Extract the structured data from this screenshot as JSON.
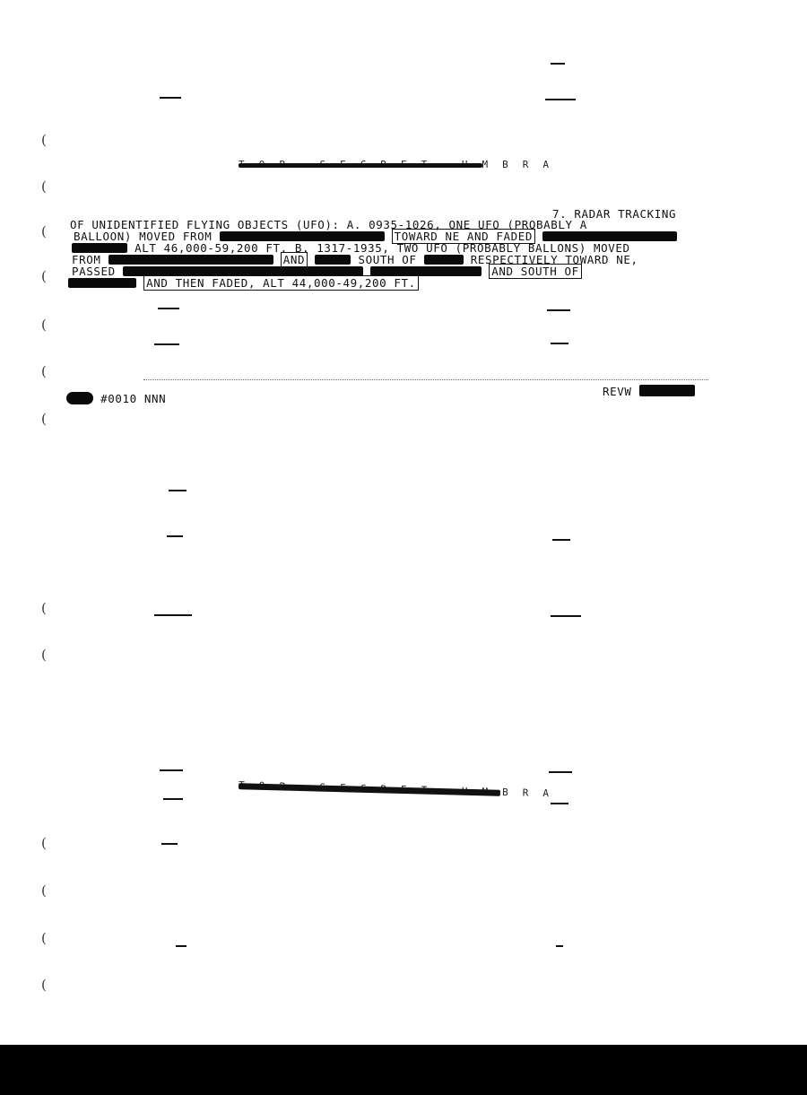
{
  "header": {
    "classification_top": "TOP SECRET UMBRA",
    "classification_bottom": "TOP SECRET UMBRA"
  },
  "report": {
    "item_heading": "7. RADAR TRACKING",
    "line1": {
      "a": "OF UNIDENTIFIED FLYING OBJECTS (UFO):  A. 0935-1026, ONE UFO (PROBABLY A"
    },
    "line2": {
      "a": "BALLOON) MOVED FROM",
      "b": "TOWARD NE AND FADED"
    },
    "line3": {
      "a": "ALT 46,000-59,200 FT.  B. 1317-1935, TWO UFO (PROBABLY BALLONS) MOVED"
    },
    "line4": {
      "a": "FROM",
      "b": "AND",
      "c": "SOUTH OF",
      "d": "RESPECTIVELY TOWARD NE,"
    },
    "line5": {
      "a": "PASSED",
      "b": "AND SOUTH OF"
    },
    "line6": {
      "a": "AND THEN FADED, ALT 44,000-49,200 FT."
    }
  },
  "footer": {
    "serial": "#0010 NNN",
    "review": "REVW"
  }
}
